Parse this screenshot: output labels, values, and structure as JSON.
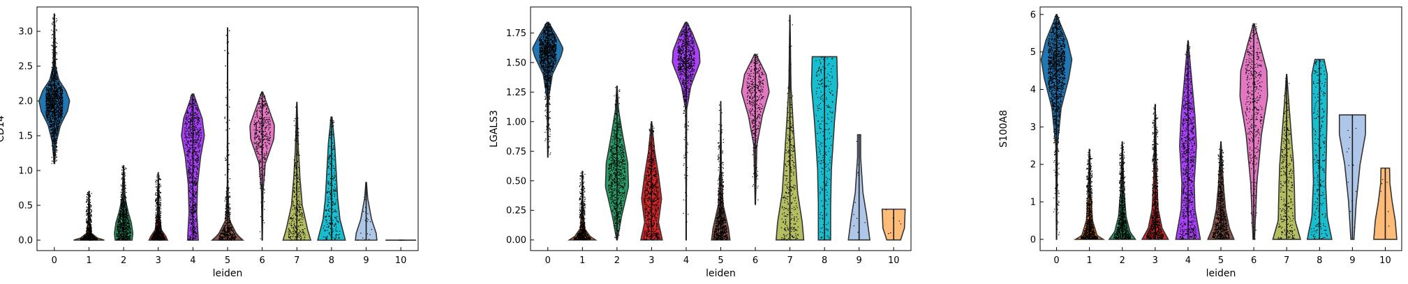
{
  "figure": {
    "palette": [
      "#1f77b4",
      "#ff7f0e",
      "#279e68",
      "#d62728",
      "#aa40fc",
      "#8c564b",
      "#e377c2",
      "#b5bd61",
      "#17becf",
      "#aec7e8",
      "#ffbb78"
    ]
  },
  "chart_data": [
    {
      "type": "violin",
      "xlabel": "leiden",
      "ylabel": "CD14",
      "categories": [
        "0",
        "1",
        "2",
        "3",
        "4",
        "5",
        "6",
        "7",
        "8",
        "9",
        "10"
      ],
      "ylim": [
        -0.15,
        3.35
      ],
      "yticks": [
        "0.0",
        "0.5",
        "1.0",
        "1.5",
        "2.0",
        "2.5",
        "3.0"
      ],
      "ytick_values": [
        0,
        0.5,
        1.0,
        1.5,
        2.0,
        2.5,
        3.0
      ],
      "series": [
        {
          "category": "0",
          "min": 1.1,
          "max": 3.25,
          "density": [
            [
              1.1,
              0.02
            ],
            [
              1.4,
              0.12
            ],
            [
              1.65,
              0.4
            ],
            [
              1.85,
              0.85
            ],
            [
              2.0,
              1.0
            ],
            [
              2.15,
              0.75
            ],
            [
              2.3,
              0.3
            ],
            [
              2.5,
              0.08
            ],
            [
              3.25,
              0.01
            ]
          ],
          "points": 1600
        },
        {
          "category": "1",
          "min": 0,
          "max": 0.7,
          "density": [
            [
              0,
              1.0
            ],
            [
              0.03,
              0.55
            ],
            [
              0.1,
              0.15
            ],
            [
              0.3,
              0.05
            ],
            [
              0.7,
              0.01
            ]
          ],
          "points": 900
        },
        {
          "category": "2",
          "min": 0,
          "max": 1.07,
          "density": [
            [
              0,
              0.55
            ],
            [
              0.1,
              0.6
            ],
            [
              0.25,
              0.5
            ],
            [
              0.4,
              0.3
            ],
            [
              0.6,
              0.1
            ],
            [
              1.07,
              0.01
            ]
          ],
          "points": 800
        },
        {
          "category": "3",
          "min": 0,
          "max": 0.97,
          "density": [
            [
              0,
              0.6
            ],
            [
              0.05,
              0.5
            ],
            [
              0.15,
              0.2
            ],
            [
              0.4,
              0.06
            ],
            [
              0.97,
              0.01
            ]
          ],
          "points": 700
        },
        {
          "category": "4",
          "min": 0,
          "max": 2.1,
          "density": [
            [
              0,
              0.35
            ],
            [
              0.4,
              0.25
            ],
            [
              0.8,
              0.3
            ],
            [
              1.2,
              0.5
            ],
            [
              1.5,
              0.75
            ],
            [
              1.75,
              0.6
            ],
            [
              2.0,
              0.2
            ],
            [
              2.1,
              0.05
            ]
          ],
          "points": 800
        },
        {
          "category": "5",
          "min": 0,
          "max": 3.05,
          "density": [
            [
              0,
              1.0
            ],
            [
              0.08,
              0.6
            ],
            [
              0.3,
              0.1
            ],
            [
              0.8,
              0.02
            ],
            [
              3.05,
              0.005
            ]
          ],
          "points": 700
        },
        {
          "category": "6",
          "min": 0,
          "max": 2.13,
          "density": [
            [
              0,
              0.01
            ],
            [
              0.7,
              0.05
            ],
            [
              1.1,
              0.2
            ],
            [
              1.45,
              0.75
            ],
            [
              1.65,
              0.8
            ],
            [
              1.9,
              0.4
            ],
            [
              2.13,
              0.03
            ]
          ],
          "points": 400
        },
        {
          "category": "7",
          "min": 0,
          "max": 1.98,
          "density": [
            [
              0,
              0.9
            ],
            [
              0.15,
              0.7
            ],
            [
              0.5,
              0.35
            ],
            [
              0.9,
              0.2
            ],
            [
              1.3,
              0.1
            ],
            [
              1.98,
              0.01
            ]
          ],
          "points": 300
        },
        {
          "category": "8",
          "min": 0,
          "max": 1.77,
          "density": [
            [
              0,
              0.9
            ],
            [
              0.3,
              0.55
            ],
            [
              0.6,
              0.4
            ],
            [
              1.0,
              0.3
            ],
            [
              1.4,
              0.2
            ],
            [
              1.77,
              0.03
            ]
          ],
          "points": 250
        },
        {
          "category": "9",
          "min": 0,
          "max": 0.83,
          "density": [
            [
              0,
              0.7
            ],
            [
              0.1,
              0.65
            ],
            [
              0.3,
              0.35
            ],
            [
              0.6,
              0.1
            ],
            [
              0.83,
              0.02
            ]
          ],
          "points": 20
        },
        {
          "category": "10",
          "min": 0,
          "max": 0.0,
          "density": [
            [
              0,
              0.0
            ]
          ],
          "points": 5
        }
      ]
    },
    {
      "type": "violin",
      "xlabel": "leiden",
      "ylabel": "LGALS3",
      "categories": [
        "0",
        "1",
        "2",
        "3",
        "4",
        "5",
        "6",
        "7",
        "8",
        "9",
        "10"
      ],
      "ylim": [
        -0.09,
        1.97
      ],
      "yticks": [
        "0.00",
        "0.25",
        "0.50",
        "0.75",
        "1.00",
        "1.25",
        "1.50",
        "1.75"
      ],
      "ytick_values": [
        0,
        0.25,
        0.5,
        0.75,
        1.0,
        1.25,
        1.5,
        1.75
      ],
      "series": [
        {
          "category": "0",
          "min": 0.7,
          "max": 1.84,
          "density": [
            [
              0.7,
              0.01
            ],
            [
              1.2,
              0.05
            ],
            [
              1.4,
              0.3
            ],
            [
              1.55,
              0.85
            ],
            [
              1.62,
              1.0
            ],
            [
              1.72,
              0.6
            ],
            [
              1.84,
              0.05
            ]
          ],
          "points": 1600
        },
        {
          "category": "1",
          "min": 0,
          "max": 0.58,
          "density": [
            [
              0,
              0.85
            ],
            [
              0.03,
              0.5
            ],
            [
              0.1,
              0.12
            ],
            [
              0.3,
              0.04
            ],
            [
              0.58,
              0.01
            ]
          ],
          "points": 900
        },
        {
          "category": "2",
          "min": 0,
          "max": 1.3,
          "density": [
            [
              0,
              0.02
            ],
            [
              0.2,
              0.3
            ],
            [
              0.45,
              0.75
            ],
            [
              0.65,
              0.7
            ],
            [
              0.9,
              0.35
            ],
            [
              1.1,
              0.1
            ],
            [
              1.3,
              0.01
            ]
          ],
          "points": 800
        },
        {
          "category": "3",
          "min": 0,
          "max": 1.0,
          "density": [
            [
              0,
              0.7
            ],
            [
              0.15,
              0.45
            ],
            [
              0.35,
              0.65
            ],
            [
              0.55,
              0.45
            ],
            [
              0.75,
              0.2
            ],
            [
              1.0,
              0.01
            ]
          ],
          "points": 700
        },
        {
          "category": "4",
          "min": 0,
          "max": 1.84,
          "density": [
            [
              0,
              0.01
            ],
            [
              1.1,
              0.03
            ],
            [
              1.3,
              0.3
            ],
            [
              1.5,
              0.9
            ],
            [
              1.6,
              0.85
            ],
            [
              1.75,
              0.4
            ],
            [
              1.84,
              0.05
            ]
          ],
          "points": 800
        },
        {
          "category": "5",
          "min": 0,
          "max": 1.17,
          "density": [
            [
              0,
              0.6
            ],
            [
              0.1,
              0.5
            ],
            [
              0.3,
              0.15
            ],
            [
              0.6,
              0.04
            ],
            [
              1.17,
              0.005
            ]
          ],
          "points": 700
        },
        {
          "category": "6",
          "min": 0.3,
          "max": 1.57,
          "density": [
            [
              0.3,
              0.01
            ],
            [
              0.8,
              0.1
            ],
            [
              1.05,
              0.45
            ],
            [
              1.25,
              0.9
            ],
            [
              1.4,
              0.7
            ],
            [
              1.57,
              0.05
            ]
          ],
          "points": 400
        },
        {
          "category": "7",
          "min": 0,
          "max": 1.9,
          "density": [
            [
              0,
              0.9
            ],
            [
              0.15,
              0.8
            ],
            [
              0.4,
              0.5
            ],
            [
              0.7,
              0.35
            ],
            [
              1.0,
              0.2
            ],
            [
              1.3,
              0.07
            ],
            [
              1.9,
              0.005
            ]
          ],
          "points": 300
        },
        {
          "category": "8",
          "min": 0,
          "max": 1.55,
          "density": [
            [
              0,
              0.4
            ],
            [
              0.3,
              0.4
            ],
            [
              0.6,
              0.45
            ],
            [
              1.0,
              0.65
            ],
            [
              1.3,
              0.85
            ],
            [
              1.55,
              0.8
            ]
          ],
          "points": 250
        },
        {
          "category": "9",
          "min": 0,
          "max": 0.89,
          "density": [
            [
              0,
              0.7
            ],
            [
              0.2,
              0.5
            ],
            [
              0.4,
              0.25
            ],
            [
              0.7,
              0.1
            ],
            [
              0.89,
              0.1
            ]
          ],
          "points": 12
        },
        {
          "category": "10",
          "min": 0,
          "max": 0.26,
          "density": [
            [
              0,
              0.45
            ],
            [
              0.1,
              0.7
            ],
            [
              0.26,
              0.75
            ]
          ],
          "points": 6
        }
      ]
    },
    {
      "type": "violin",
      "xlabel": "leiden",
      "ylabel": "S100A8",
      "categories": [
        "0",
        "1",
        "2",
        "3",
        "4",
        "5",
        "6",
        "7",
        "8",
        "9",
        "10"
      ],
      "ylim": [
        -0.3,
        6.2
      ],
      "yticks": [
        "0",
        "1",
        "2",
        "3",
        "4",
        "5",
        "6"
      ],
      "ytick_values": [
        0,
        1,
        2,
        3,
        4,
        5,
        6
      ],
      "series": [
        {
          "category": "0",
          "min": 0,
          "max": 6.0,
          "density": [
            [
              0,
              0.01
            ],
            [
              2.5,
              0.05
            ],
            [
              3.5,
              0.3
            ],
            [
              4.3,
              0.8
            ],
            [
              4.8,
              1.0
            ],
            [
              5.3,
              0.7
            ],
            [
              5.8,
              0.2
            ],
            [
              6.0,
              0.02
            ]
          ],
          "points": 1600
        },
        {
          "category": "1",
          "min": 0,
          "max": 2.4,
          "density": [
            [
              0,
              0.9
            ],
            [
              0.1,
              0.5
            ],
            [
              0.5,
              0.2
            ],
            [
              1.2,
              0.08
            ],
            [
              2.4,
              0.01
            ]
          ],
          "points": 900
        },
        {
          "category": "2",
          "min": 0,
          "max": 2.6,
          "density": [
            [
              0,
              0.85
            ],
            [
              0.2,
              0.5
            ],
            [
              0.6,
              0.25
            ],
            [
              1.3,
              0.1
            ],
            [
              2.6,
              0.01
            ]
          ],
          "points": 800
        },
        {
          "category": "3",
          "min": 0,
          "max": 3.6,
          "density": [
            [
              0,
              0.85
            ],
            [
              0.3,
              0.45
            ],
            [
              0.8,
              0.2
            ],
            [
              1.6,
              0.1
            ],
            [
              3.6,
              0.01
            ]
          ],
          "points": 700
        },
        {
          "category": "4",
          "min": 0,
          "max": 5.3,
          "density": [
            [
              0,
              0.8
            ],
            [
              0.8,
              0.45
            ],
            [
              1.5,
              0.4
            ],
            [
              2.5,
              0.55
            ],
            [
              3.3,
              0.45
            ],
            [
              4.2,
              0.25
            ],
            [
              5.3,
              0.01
            ]
          ],
          "points": 800
        },
        {
          "category": "5",
          "min": 0,
          "max": 2.6,
          "density": [
            [
              0,
              0.85
            ],
            [
              0.3,
              0.55
            ],
            [
              0.8,
              0.3
            ],
            [
              1.5,
              0.15
            ],
            [
              2.6,
              0.01
            ]
          ],
          "points": 700
        },
        {
          "category": "6",
          "min": 0,
          "max": 5.75,
          "density": [
            [
              0,
              0.05
            ],
            [
              1.5,
              0.2
            ],
            [
              2.8,
              0.5
            ],
            [
              3.8,
              0.9
            ],
            [
              4.5,
              0.85
            ],
            [
              5.2,
              0.4
            ],
            [
              5.75,
              0.03
            ]
          ],
          "points": 400
        },
        {
          "category": "7",
          "min": 0,
          "max": 4.4,
          "density": [
            [
              0,
              0.9
            ],
            [
              0.5,
              0.55
            ],
            [
              1.4,
              0.5
            ],
            [
              2.0,
              0.45
            ],
            [
              2.8,
              0.3
            ],
            [
              3.6,
              0.15
            ],
            [
              4.4,
              0.01
            ]
          ],
          "points": 300
        },
        {
          "category": "8",
          "min": 0,
          "max": 4.8,
          "density": [
            [
              0,
              0.8
            ],
            [
              0.6,
              0.5
            ],
            [
              1.5,
              0.4
            ],
            [
              2.5,
              0.45
            ],
            [
              3.5,
              0.5
            ],
            [
              4.4,
              0.5
            ],
            [
              4.8,
              0.3
            ]
          ],
          "points": 250
        },
        {
          "category": "9",
          "min": 0,
          "max": 3.32,
          "density": [
            [
              0,
              0.1
            ],
            [
              1.0,
              0.25
            ],
            [
              2.0,
              0.5
            ],
            [
              2.8,
              0.85
            ],
            [
              3.32,
              0.85
            ]
          ],
          "points": 14
        },
        {
          "category": "10",
          "min": 0,
          "max": 1.9,
          "density": [
            [
              0,
              0.75
            ],
            [
              0.5,
              0.65
            ],
            [
              1.0,
              0.45
            ],
            [
              1.5,
              0.3
            ],
            [
              1.9,
              0.28
            ]
          ],
          "points": 6
        }
      ]
    }
  ]
}
